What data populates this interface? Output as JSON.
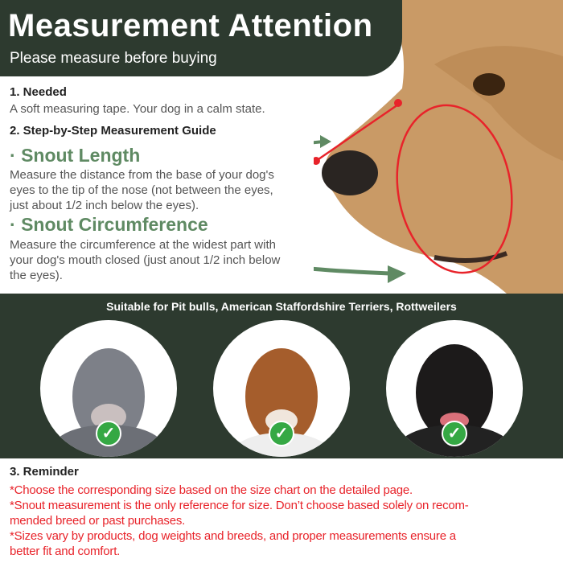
{
  "header": {
    "title": "Measurement Attention",
    "subtitle": "Please measure before buying"
  },
  "needed": {
    "heading": "1. Needed",
    "text": "A soft measuring tape. Your dog in a calm state."
  },
  "guide": {
    "heading": "2. Step-by-Step Measurement Guide",
    "snout_length": {
      "title": "Snout Length",
      "lines": [
        "Measure the distance from the base of your dog's",
        "eyes to the tip of the nose (not between the eyes,",
        "just about 1/2 inch below the eyes)."
      ]
    },
    "snout_circumference": {
      "title": "Snout Circumference",
      "lines": [
        "Measure the circumference at the widest part with",
        "your dog's mouth closed (just anout 1/2 inch below",
        "the eyes)."
      ]
    }
  },
  "breeds": {
    "title": "Suitable for Pit bulls, American Staffordshire Terriers, Rottweilers",
    "items": [
      {
        "name": "Pit bull",
        "check": "✓"
      },
      {
        "name": "American Staffordshire Terrier",
        "check": "✓"
      },
      {
        "name": "Rottweiler",
        "check": "✓"
      }
    ]
  },
  "reminder": {
    "heading": "3. Reminder",
    "lines": [
      "*Choose the corresponding size based on the size chart on the detailed page.",
      "*Snout measurement is the only reference for size. Don’t choose based solely on recom-",
      "mended breed or past purchases.",
      "*Sizes vary by products, dog weights and breeds, and proper measurements ensure a",
      "better fit and comfort."
    ]
  },
  "colors": {
    "dark_green": "#2d3a2f",
    "accent_green": "#5f8a63",
    "red": "#e8232a",
    "check_green": "#35a844"
  }
}
